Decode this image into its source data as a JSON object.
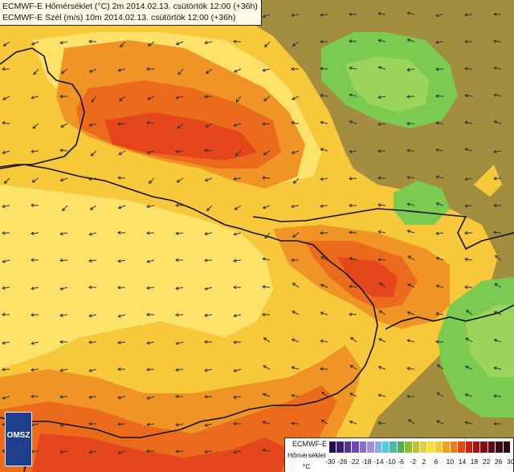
{
  "header": {
    "line1": "ECMWF-E Hőmérséklet (°C) 2m 2014.02.13. csütörtök 12:00 (+36h)",
    "line2": "ECMWF-E Szél (m/s) 10m 2014.02.13. csütörtök 12:00 (+36h)"
  },
  "logo": {
    "text": "OMSZ",
    "icon": "omsz-logo-icon"
  },
  "legend": {
    "title": "ECMWF-E",
    "subtitle": "Hőmérséklet",
    "unit": "°C",
    "ticks": [
      "-30",
      "-26",
      "-22",
      "-18",
      "-14",
      "-10",
      "-6",
      "-2",
      "2",
      "6",
      "10",
      "14",
      "18",
      "22",
      "26",
      "30"
    ],
    "colors": [
      "#2a0a5a",
      "#3a1a80",
      "#5432a0",
      "#6e4cb8",
      "#8a6cd0",
      "#a78ce0",
      "#7fb0e8",
      "#50c8e8",
      "#40c0a0",
      "#50b050",
      "#88c030",
      "#c0c030",
      "#e0d040",
      "#f8e040",
      "#f8c830",
      "#f4a020",
      "#ee7a18",
      "#e84810",
      "#d02010",
      "#a81010",
      "#801010",
      "#600a10",
      "#400810",
      "#300510"
    ]
  },
  "colors": {
    "green": "#7acb50",
    "olive": "#a38e40",
    "yellow": "#f7c93a",
    "light_yellow": "#fde26a",
    "orange": "#ef9425",
    "dark_orange": "#eb6a1c",
    "red": "#e5461c",
    "border_line": "#111111"
  }
}
